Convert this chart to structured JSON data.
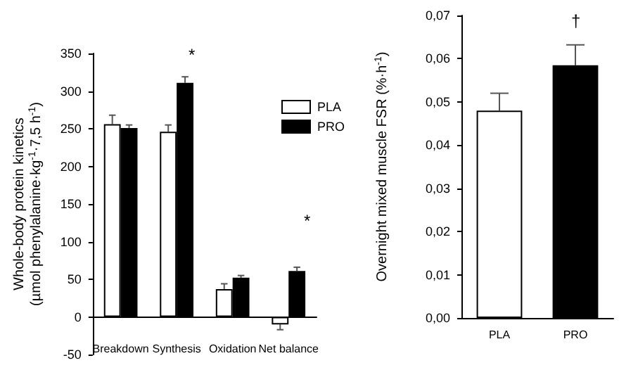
{
  "chart_data": [
    {
      "type": "bar",
      "ylabel": "Whole-body protein kinetics\n(µmol phenylalanine·kg$^{-1}$·7,5 h$^{-1}$)",
      "categories": [
        "Breakdown",
        "Synthesis",
        "Oxidation",
        "Net balance"
      ],
      "series": [
        {
          "name": "PLA",
          "color": "#ffffff",
          "values": [
            256,
            246,
            37,
            -10
          ],
          "errors": [
            12,
            9,
            7,
            7
          ]
        },
        {
          "name": "PRO",
          "color": "#000000",
          "values": [
            251,
            311,
            52,
            61
          ],
          "errors": [
            4,
            8,
            3,
            5
          ]
        }
      ],
      "ylim": [
        -50,
        350
      ],
      "yticks": [
        -50,
        0,
        50,
        100,
        150,
        200,
        250,
        300,
        350
      ],
      "legend": "right",
      "grid": false,
      "annotations": [
        "*",
        "*"
      ]
    },
    {
      "type": "bar",
      "ylabel": "Overnight mixed muscle FSR (%·h$^{-1}$)",
      "categories": [
        "PLA",
        "PRO"
      ],
      "values": [
        0.048,
        0.0585
      ],
      "errors": [
        0.004,
        0.0047
      ],
      "colors": [
        "#ffffff",
        "#000000"
      ],
      "ylim": [
        0,
        0.07
      ],
      "yticks": [
        {
          "value": 0,
          "label": "0,00"
        },
        {
          "value": 0.01,
          "label": "0,01"
        },
        {
          "value": 0.02,
          "label": "0,02"
        },
        {
          "value": 0.03,
          "label": "0,03"
        },
        {
          "value": 0.04,
          "label": "0,04"
        },
        {
          "value": 0.05,
          "label": "0,05"
        },
        {
          "value": 0.06,
          "label": "0,06"
        },
        {
          "value": 0.07,
          "label": "0,07"
        }
      ],
      "grid": false,
      "annotations": [
        "†"
      ]
    }
  ]
}
